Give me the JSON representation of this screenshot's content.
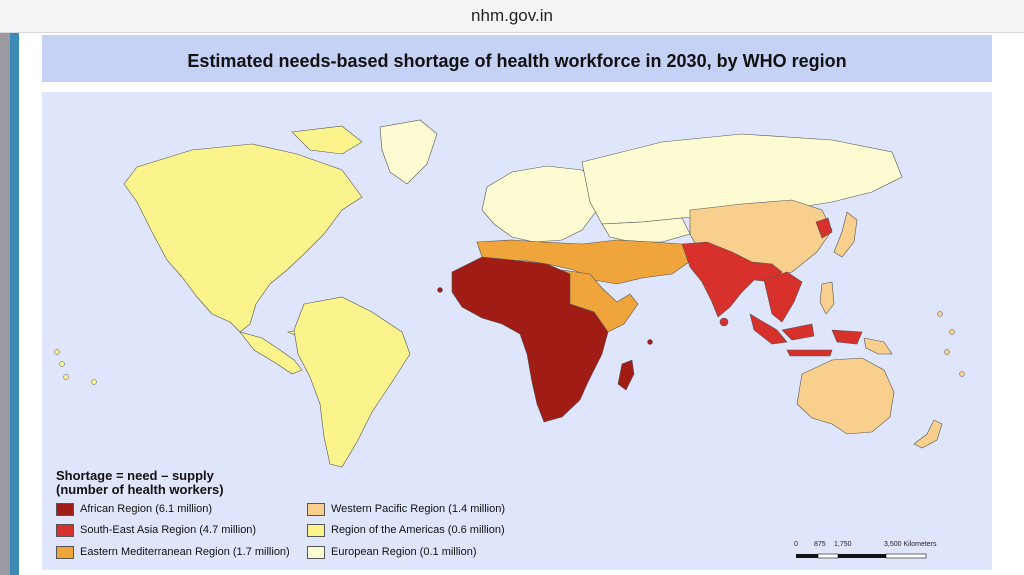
{
  "browser": {
    "url": "nhm.gov.in"
  },
  "map": {
    "title": "Estimated needs-based shortage of health workforce in 2030, by WHO region",
    "legend_title_line1": "Shortage = need – supply",
    "legend_title_line2": "(number of health workers)",
    "legend": [
      {
        "label": "African Region (6.1 million)",
        "color": "#a01c14"
      },
      {
        "label": "South-East Asia Region (4.7 million)",
        "color": "#d8302a"
      },
      {
        "label": "Eastern Mediterranean Region (1.7 million)",
        "color": "#f0a43c"
      },
      {
        "label": "Western Pacific Region (1.4 million)",
        "color": "#f8cf8c"
      },
      {
        "label": "Region of the Americas (0.6 million)",
        "color": "#fbf48c"
      },
      {
        "label": "European Region (0.1 million)",
        "color": "#fdfbd2"
      }
    ],
    "scale": {
      "ticks": [
        "0",
        "875",
        "1,750",
        "3,500 Kilometers"
      ]
    }
  }
}
